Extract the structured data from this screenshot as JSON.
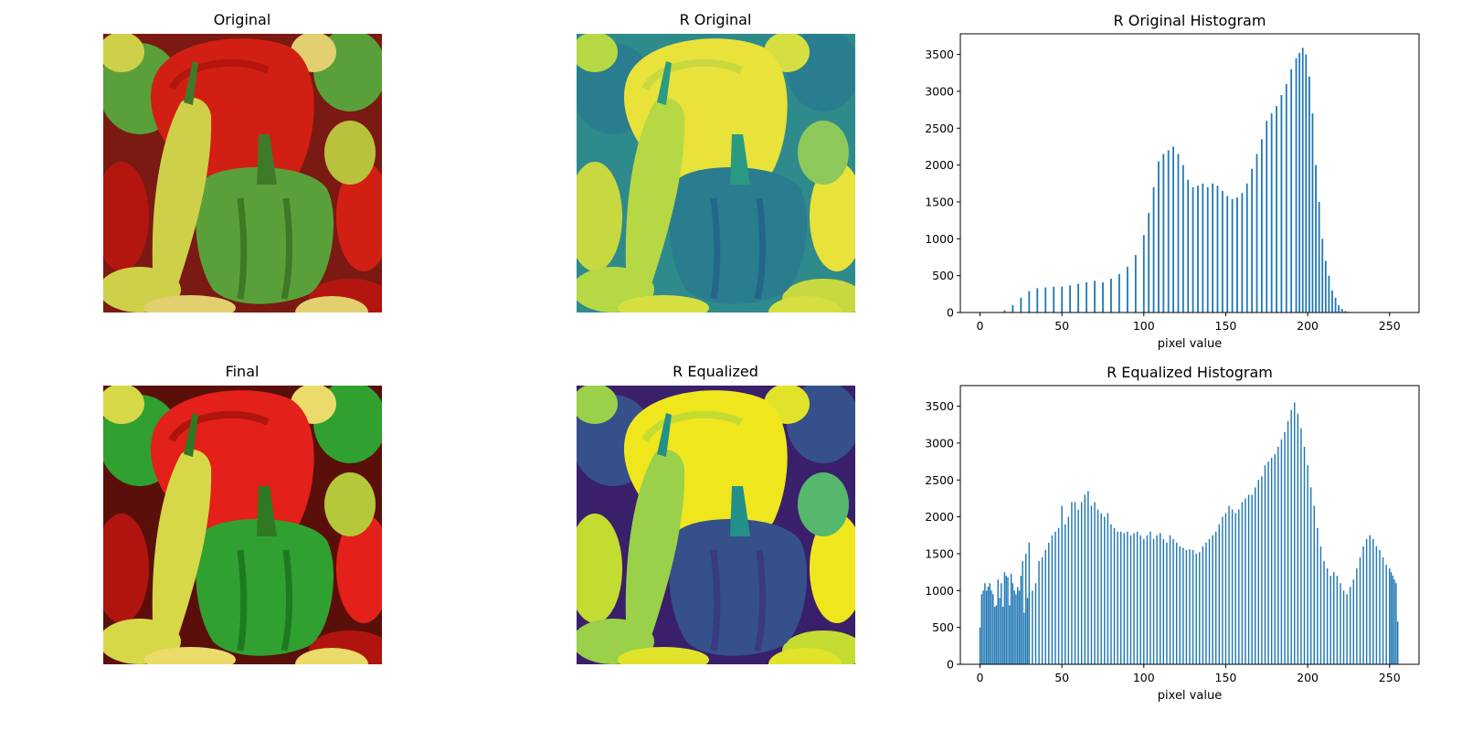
{
  "figure": {
    "panels": [
      {
        "id": "original",
        "title": "Original",
        "kind": "image",
        "variant": "color"
      },
      {
        "id": "r-original",
        "title": "R Original",
        "kind": "image",
        "variant": "viridis"
      },
      {
        "id": "final",
        "title": "Final",
        "kind": "image",
        "variant": "color-eq"
      },
      {
        "id": "r-equalized",
        "title": "R Equalized",
        "kind": "image",
        "variant": "viridis-eq"
      }
    ],
    "bar_color": "#1f77b4"
  },
  "chart_data": [
    {
      "type": "bar",
      "title": "R Original Histogram",
      "xlabel": "pixel value",
      "ylabel": "",
      "xlim": [
        -12,
        268
      ],
      "ylim": [
        0,
        3780
      ],
      "xticks": [
        0,
        50,
        100,
        150,
        200,
        250
      ],
      "yticks": [
        0,
        500,
        1000,
        1500,
        2000,
        2500,
        3000,
        3500
      ],
      "grid": false,
      "legend": "none",
      "bin_width": 1,
      "x": [
        10,
        15,
        20,
        25,
        30,
        35,
        40,
        45,
        50,
        55,
        60,
        65,
        70,
        75,
        80,
        85,
        90,
        95,
        100,
        103,
        106,
        109,
        112,
        115,
        118,
        121,
        124,
        127,
        130,
        133,
        136,
        139,
        142,
        145,
        148,
        151,
        154,
        157,
        160,
        163,
        166,
        169,
        172,
        175,
        178,
        181,
        184,
        187,
        190,
        193,
        195,
        197,
        199,
        201,
        203,
        205,
        207,
        209,
        211,
        213,
        215,
        217,
        219,
        221,
        223,
        225,
        227,
        229
      ],
      "values": [
        5,
        30,
        100,
        200,
        290,
        330,
        340,
        350,
        350,
        370,
        390,
        410,
        430,
        410,
        460,
        520,
        620,
        780,
        1050,
        1350,
        1700,
        2050,
        2150,
        2200,
        2250,
        2150,
        2000,
        1800,
        1700,
        1720,
        1750,
        1700,
        1750,
        1720,
        1650,
        1580,
        1540,
        1560,
        1620,
        1750,
        1950,
        2150,
        2350,
        2600,
        2700,
        2800,
        2950,
        3100,
        3300,
        3450,
        3520,
        3590,
        3500,
        3200,
        2700,
        2000,
        1500,
        1000,
        700,
        500,
        300,
        200,
        100,
        50,
        20,
        10,
        5,
        0
      ]
    },
    {
      "type": "bar",
      "title": "R Equalized Histogram",
      "xlabel": "pixel value",
      "ylabel": "",
      "xlim": [
        -12,
        268
      ],
      "ylim": [
        0,
        3780
      ],
      "xticks": [
        0,
        50,
        100,
        150,
        200,
        250
      ],
      "yticks": [
        0,
        500,
        1000,
        1500,
        2000,
        2500,
        3000,
        3500
      ],
      "grid": false,
      "legend": "none",
      "bin_width": 0.8,
      "x": [
        0,
        1,
        2,
        3,
        4,
        5,
        6,
        7,
        8,
        9,
        10,
        11,
        12,
        13,
        14,
        15,
        16,
        17,
        18,
        19,
        20,
        21,
        22,
        23,
        24,
        25,
        26,
        27,
        28,
        29,
        30,
        32,
        34,
        36,
        38,
        40,
        42,
        44,
        46,
        48,
        50,
        52,
        54,
        56,
        58,
        60,
        62,
        64,
        66,
        68,
        70,
        72,
        74,
        76,
        78,
        80,
        82,
        84,
        86,
        88,
        90,
        92,
        94,
        96,
        98,
        100,
        102,
        104,
        106,
        108,
        110,
        112,
        114,
        116,
        118,
        120,
        122,
        124,
        126,
        128,
        130,
        132,
        134,
        136,
        138,
        140,
        142,
        144,
        146,
        148,
        150,
        152,
        154,
        156,
        158,
        160,
        162,
        164,
        166,
        168,
        170,
        172,
        174,
        176,
        178,
        180,
        182,
        184,
        186,
        188,
        190,
        192,
        194,
        196,
        198,
        200,
        202,
        204,
        206,
        208,
        210,
        212,
        214,
        216,
        218,
        220,
        222,
        224,
        226,
        228,
        230,
        232,
        234,
        236,
        238,
        240,
        242,
        244,
        246,
        248,
        250,
        251,
        252,
        253,
        254,
        255
      ],
      "values": [
        500,
        950,
        1000,
        1100,
        1000,
        1050,
        1100,
        1000,
        950,
        780,
        800,
        1150,
        900,
        1100,
        780,
        1250,
        1200,
        1180,
        800,
        1230,
        1100,
        1000,
        950,
        1050,
        1000,
        1200,
        1400,
        700,
        1500,
        900,
        1650,
        1000,
        1100,
        1400,
        1450,
        1550,
        1650,
        1750,
        1800,
        1850,
        2150,
        1900,
        2000,
        2200,
        2200,
        2100,
        2200,
        2300,
        2350,
        2150,
        2200,
        2100,
        2050,
        2000,
        2050,
        1900,
        1850,
        1800,
        1800,
        1780,
        1800,
        1750,
        1780,
        1800,
        1750,
        1700,
        1750,
        1800,
        1700,
        1750,
        1780,
        1700,
        1650,
        1750,
        1700,
        1650,
        1600,
        1580,
        1550,
        1560,
        1550,
        1500,
        1520,
        1600,
        1650,
        1700,
        1750,
        1800,
        1900,
        2000,
        2050,
        2150,
        2100,
        2050,
        2100,
        2200,
        2250,
        2300,
        2300,
        2400,
        2500,
        2550,
        2700,
        2750,
        2800,
        2850,
        2950,
        3050,
        3150,
        3300,
        3450,
        3550,
        3400,
        3200,
        2950,
        2700,
        2400,
        2150,
        1850,
        1600,
        1400,
        1300,
        1200,
        1250,
        1200,
        1100,
        1000,
        950,
        1050,
        1150,
        1300,
        1450,
        1600,
        1700,
        1750,
        1700,
        1600,
        1550,
        1450,
        1350,
        1300,
        1250,
        1200,
        1150,
        1100,
        580
      ]
    }
  ]
}
